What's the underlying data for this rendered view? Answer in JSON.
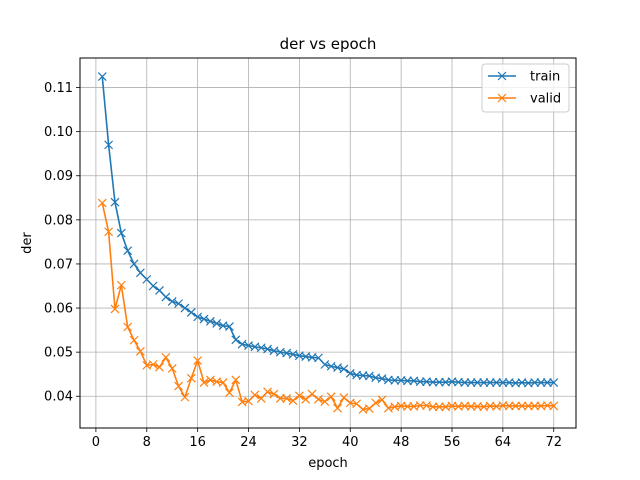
{
  "chart_data": {
    "type": "line",
    "title": "der vs epoch",
    "xlabel": "epoch",
    "ylabel": "der",
    "xlim": [
      -2.5,
      75.5
    ],
    "ylim": [
      0.0328,
      0.1167
    ],
    "xticks": [
      0,
      8,
      16,
      24,
      32,
      40,
      48,
      56,
      64,
      72
    ],
    "yticks": [
      0.04,
      0.05,
      0.06,
      0.07,
      0.08,
      0.09,
      0.1,
      0.11
    ],
    "ytick_labels": [
      "0.04",
      "0.05",
      "0.06",
      "0.07",
      "0.08",
      "0.09",
      "0.10",
      "0.11"
    ],
    "grid": true,
    "legend_position": "top-right",
    "marker": "x",
    "x": [
      1,
      2,
      3,
      4,
      5,
      6,
      7,
      8,
      9,
      10,
      11,
      12,
      13,
      14,
      15,
      16,
      17,
      18,
      19,
      20,
      21,
      22,
      23,
      24,
      25,
      26,
      27,
      28,
      29,
      30,
      31,
      32,
      33,
      34,
      35,
      36,
      37,
      38,
      39,
      40,
      41,
      42,
      43,
      44,
      45,
      46,
      47,
      48,
      49,
      50,
      51,
      52,
      53,
      54,
      55,
      56,
      57,
      58,
      59,
      60,
      61,
      62,
      63,
      64,
      65,
      66,
      67,
      68,
      69,
      70,
      71,
      72
    ],
    "series": [
      {
        "name": "train",
        "color": "#1f77b4",
        "values": [
          0.1125,
          0.097,
          0.084,
          0.077,
          0.073,
          0.07,
          0.068,
          0.0665,
          0.065,
          0.064,
          0.0625,
          0.0615,
          0.061,
          0.06,
          0.059,
          0.058,
          0.0575,
          0.057,
          0.0565,
          0.056,
          0.0558,
          0.0528,
          0.0518,
          0.0515,
          0.0512,
          0.051,
          0.0507,
          0.0503,
          0.05,
          0.0498,
          0.0495,
          0.0492,
          0.049,
          0.0488,
          0.0487,
          0.0472,
          0.0468,
          0.0465,
          0.0462,
          0.0452,
          0.0448,
          0.0447,
          0.0446,
          0.0442,
          0.044,
          0.0437,
          0.0436,
          0.0436,
          0.0435,
          0.0435,
          0.0433,
          0.0433,
          0.0432,
          0.0432,
          0.0432,
          0.0433,
          0.0432,
          0.0431,
          0.0431,
          0.0431,
          0.0431,
          0.0431,
          0.0431,
          0.0431,
          0.0431,
          0.043,
          0.0431,
          0.043,
          0.0431,
          0.0431,
          0.0431,
          0.0431
        ]
      },
      {
        "name": "valid",
        "color": "#ff7f0e",
        "values": [
          0.0838,
          0.0773,
          0.0598,
          0.0652,
          0.0557,
          0.0527,
          0.0502,
          0.047,
          0.0472,
          0.0466,
          0.0488,
          0.0463,
          0.0423,
          0.0398,
          0.0441,
          0.0481,
          0.0431,
          0.0437,
          0.0433,
          0.0431,
          0.0408,
          0.0437,
          0.0387,
          0.0389,
          0.0403,
          0.0395,
          0.041,
          0.0405,
          0.0395,
          0.0395,
          0.039,
          0.0401,
          0.0393,
          0.0405,
          0.0393,
          0.0388,
          0.0399,
          0.0373,
          0.0397,
          0.0385,
          0.0383,
          0.037,
          0.0372,
          0.0385,
          0.0392,
          0.0373,
          0.0376,
          0.0378,
          0.0377,
          0.0377,
          0.0379,
          0.0379,
          0.0376,
          0.0376,
          0.0376,
          0.0378,
          0.0377,
          0.0378,
          0.0377,
          0.0377,
          0.0376,
          0.0378,
          0.0377,
          0.0379,
          0.0378,
          0.0378,
          0.0378,
          0.0378,
          0.0378,
          0.0378,
          0.0379,
          0.0378
        ]
      }
    ]
  }
}
